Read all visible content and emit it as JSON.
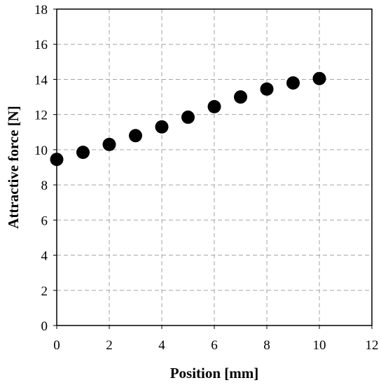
{
  "chart_data": {
    "type": "scatter",
    "title": "",
    "xlabel": "Position [mm]",
    "ylabel": "Attractive force [N]",
    "xlim": [
      0,
      12
    ],
    "ylim": [
      0,
      18
    ],
    "xticks": [
      0,
      2,
      4,
      6,
      8,
      10,
      12
    ],
    "yticks": [
      0,
      2,
      4,
      6,
      8,
      10,
      12,
      14,
      16,
      18
    ],
    "grid": true,
    "grid_style": "dashed",
    "legend": "none",
    "marker_color": "#000000",
    "series": [
      {
        "x": [
          0,
          1,
          2,
          3,
          4,
          5,
          6,
          7,
          8,
          9,
          10
        ],
        "y": [
          9.45,
          9.85,
          10.3,
          10.8,
          11.3,
          11.85,
          12.45,
          13.0,
          13.45,
          13.8,
          14.05
        ]
      }
    ]
  }
}
